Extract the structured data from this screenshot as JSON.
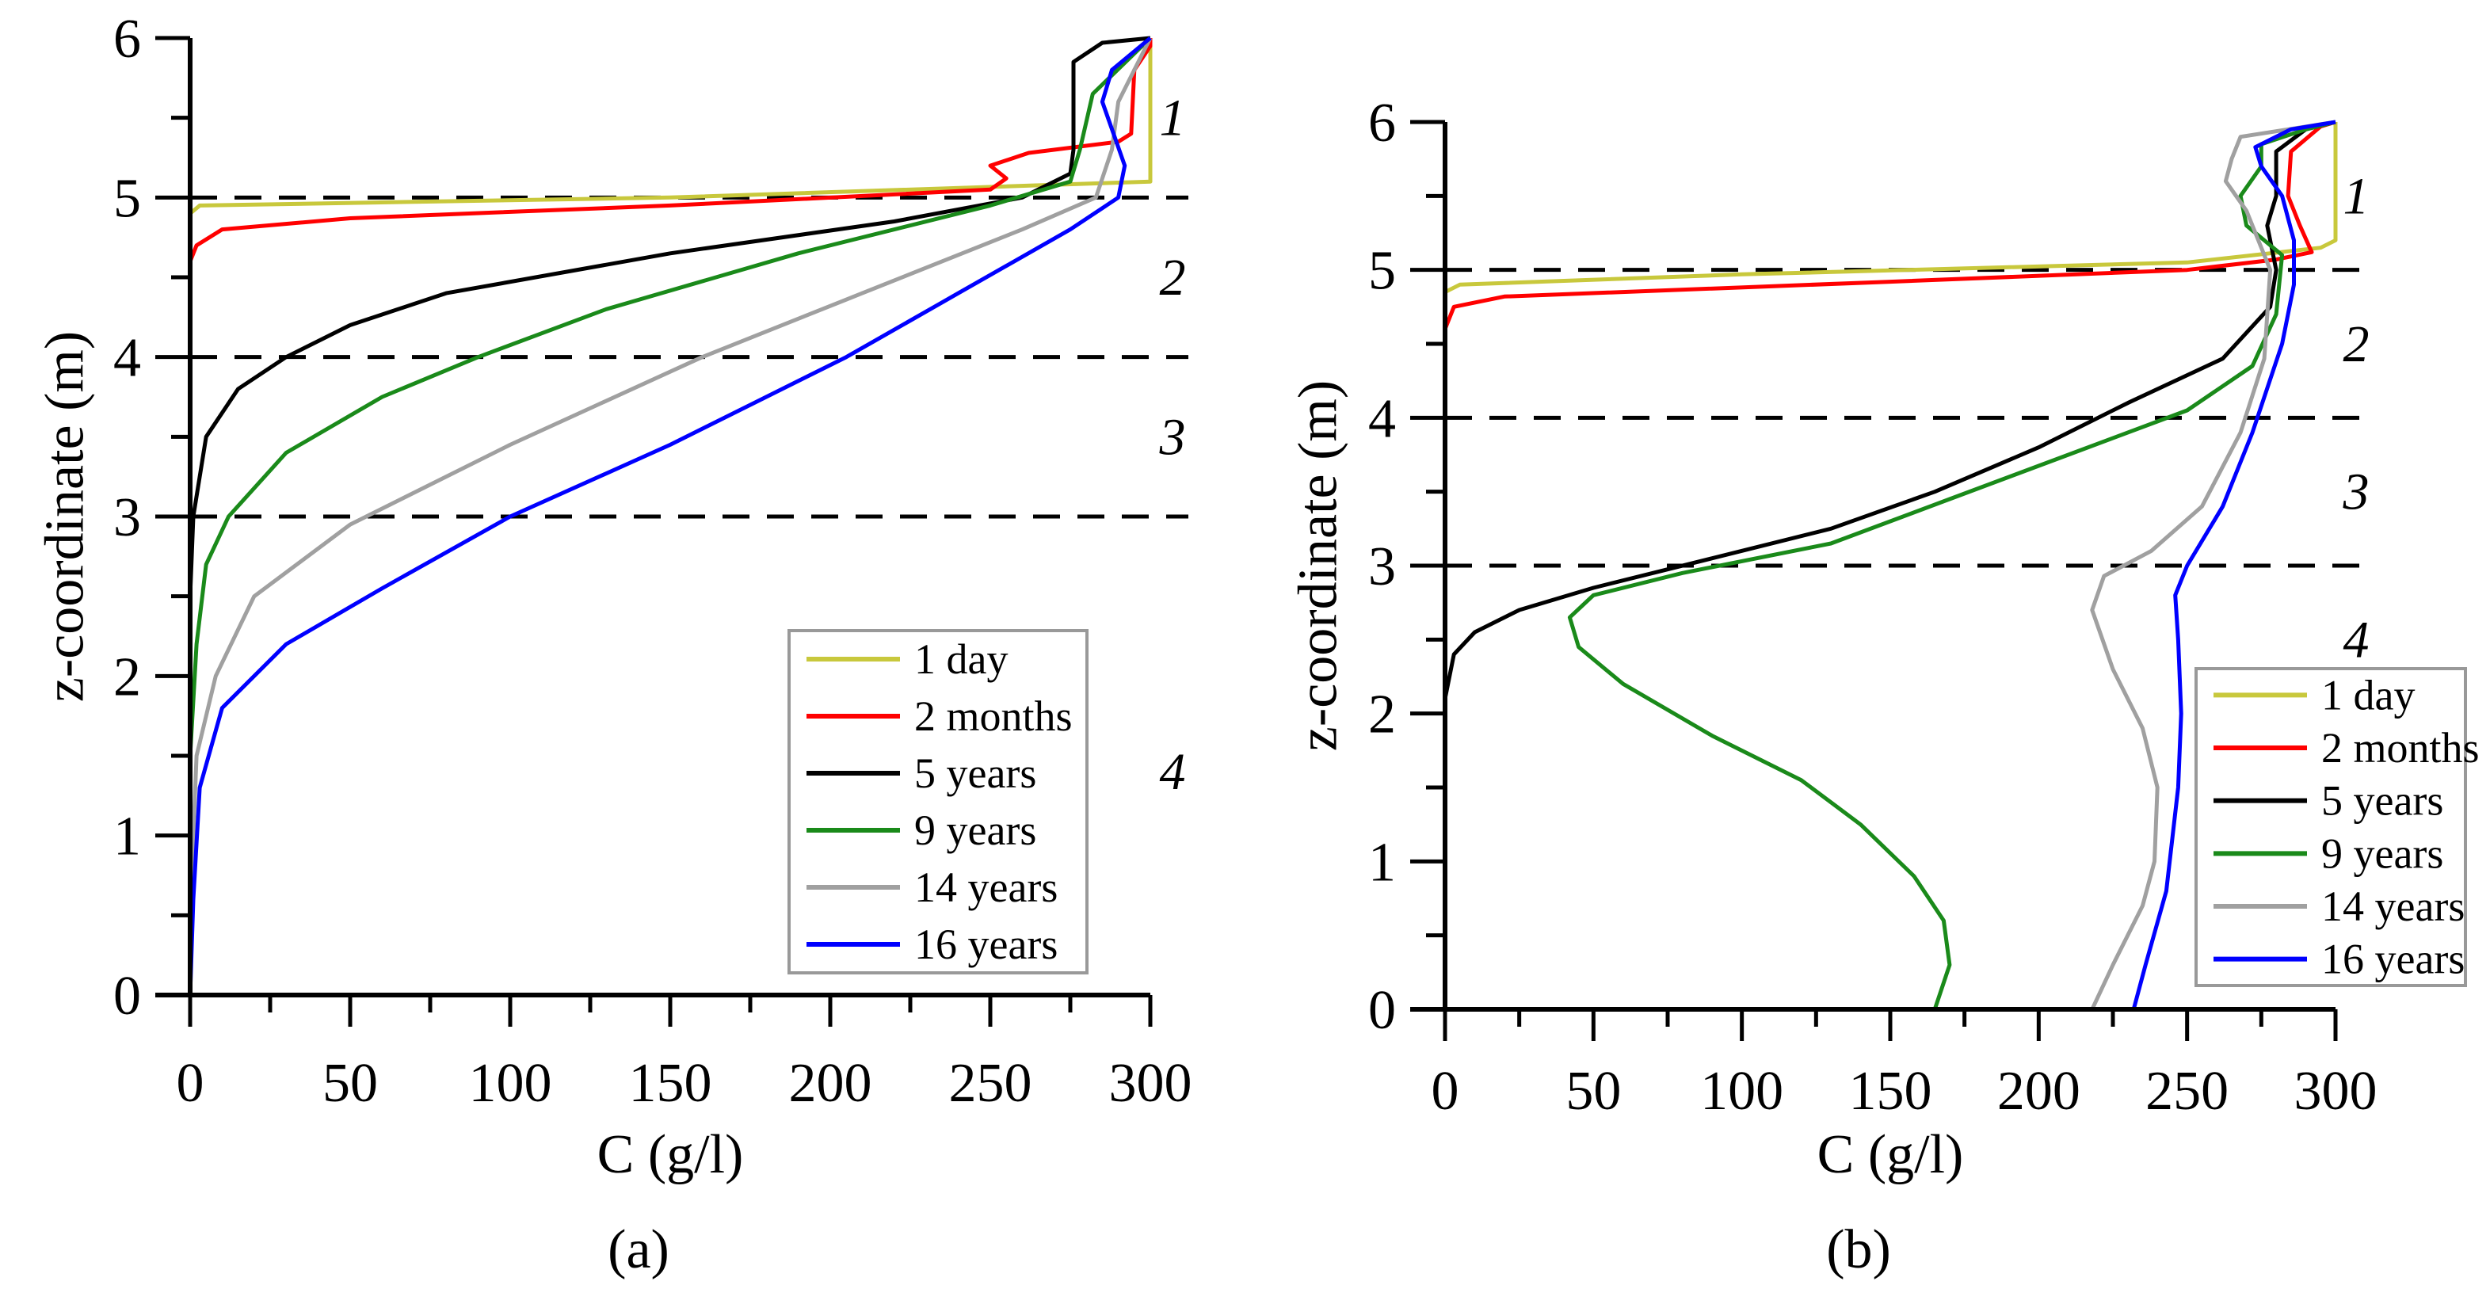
{
  "chart_data": [
    {
      "type": "line",
      "panel_label": "(a)",
      "panel_letter": "a",
      "xlabel": "C (g/l)",
      "ylabel": "z-coordinate (m)",
      "xlim": [
        0,
        300
      ],
      "ylim": [
        0,
        6
      ],
      "xticks": [
        0,
        50,
        100,
        150,
        200,
        250,
        300
      ],
      "yticks": [
        0,
        1,
        2,
        3,
        4,
        5,
        6
      ],
      "reference_lines_z": [
        3,
        4,
        5
      ],
      "zone_labels": [
        {
          "text": "1",
          "z": 5.5
        },
        {
          "text": "2",
          "z": 4.5
        },
        {
          "text": "3",
          "z": 3.5
        },
        {
          "text": "4",
          "z": 1.4
        }
      ],
      "legend_position": "bottom-right",
      "series": [
        {
          "name": "1 day",
          "color": "#c8c83c",
          "points": [
            [
              0,
              0
            ],
            [
              0,
              4.9
            ],
            [
              3,
              4.95
            ],
            [
              150,
              5.0
            ],
            [
              300,
              5.1
            ],
            [
              300,
              5.9
            ],
            [
              300,
              6
            ]
          ]
        },
        {
          "name": "2 months",
          "color": "#ff0000",
          "points": [
            [
              0,
              0
            ],
            [
              0,
              4.6
            ],
            [
              2,
              4.7
            ],
            [
              10,
              4.8
            ],
            [
              50,
              4.87
            ],
            [
              150,
              4.95
            ],
            [
              250,
              5.05
            ],
            [
              255,
              5.12
            ],
            [
              250,
              5.2
            ],
            [
              262,
              5.28
            ],
            [
              290,
              5.35
            ],
            [
              294,
              5.4
            ],
            [
              295,
              5.8
            ],
            [
              300,
              5.95
            ],
            [
              300,
              6
            ]
          ]
        },
        {
          "name": "5 years",
          "color": "#000000",
          "points": [
            [
              0,
              0
            ],
            [
              0,
              2.5
            ],
            [
              1,
              3
            ],
            [
              5,
              3.5
            ],
            [
              15,
              3.8
            ],
            [
              30,
              4
            ],
            [
              50,
              4.2
            ],
            [
              80,
              4.4
            ],
            [
              150,
              4.65
            ],
            [
              220,
              4.85
            ],
            [
              260,
              5
            ],
            [
              275,
              5.15
            ],
            [
              276,
              5.3
            ],
            [
              276,
              5.85
            ],
            [
              285,
              5.97
            ],
            [
              300,
              6
            ]
          ]
        },
        {
          "name": "9 years",
          "color": "#1a8a1a",
          "points": [
            [
              0,
              0
            ],
            [
              0,
              1.5
            ],
            [
              2,
              2.2
            ],
            [
              5,
              2.7
            ],
            [
              12,
              3
            ],
            [
              30,
              3.4
            ],
            [
              60,
              3.75
            ],
            [
              90,
              4
            ],
            [
              130,
              4.3
            ],
            [
              190,
              4.65
            ],
            [
              250,
              4.95
            ],
            [
              275,
              5.1
            ],
            [
              278,
              5.3
            ],
            [
              282,
              5.65
            ],
            [
              300,
              6
            ]
          ]
        },
        {
          "name": "14 years",
          "color": "#a0a0a0",
          "points": [
            [
              0,
              0
            ],
            [
              1,
              1
            ],
            [
              2,
              1.5
            ],
            [
              8,
              2
            ],
            [
              20,
              2.5
            ],
            [
              50,
              2.95
            ],
            [
              100,
              3.45
            ],
            [
              160,
              4
            ],
            [
              210,
              4.4
            ],
            [
              260,
              4.8
            ],
            [
              283,
              5
            ],
            [
              288,
              5.3
            ],
            [
              290,
              5.6
            ],
            [
              300,
              6
            ]
          ]
        },
        {
          "name": "16 years",
          "color": "#0000ff",
          "points": [
            [
              0,
              0
            ],
            [
              1,
              0.6
            ],
            [
              3,
              1.3
            ],
            [
              10,
              1.8
            ],
            [
              30,
              2.2
            ],
            [
              60,
              2.55
            ],
            [
              100,
              3
            ],
            [
              150,
              3.45
            ],
            [
              205,
              4
            ],
            [
              240,
              4.4
            ],
            [
              275,
              4.8
            ],
            [
              290,
              5
            ],
            [
              292,
              5.2
            ],
            [
              285,
              5.6
            ],
            [
              288,
              5.8
            ],
            [
              300,
              6
            ]
          ]
        }
      ]
    },
    {
      "type": "line",
      "panel_label": "(b)",
      "panel_letter": "b",
      "xlabel": "C (g/l)",
      "ylabel": "z-coordinate (m)",
      "xlim": [
        0,
        300
      ],
      "ylim": [
        0,
        6
      ],
      "xticks": [
        0,
        50,
        100,
        150,
        200,
        250,
        300
      ],
      "yticks": [
        0,
        1,
        2,
        3,
        4,
        5,
        6
      ],
      "reference_lines_z": [
        3,
        4,
        5
      ],
      "zone_labels": [
        {
          "text": "1",
          "z": 5.5
        },
        {
          "text": "2",
          "z": 4.5
        },
        {
          "text": "3",
          "z": 3.5
        },
        {
          "text": "4",
          "z": 2.5
        }
      ],
      "legend_position": "bottom-right",
      "series": [
        {
          "name": "1 day",
          "color": "#c8c83c",
          "points": [
            [
              0,
              0
            ],
            [
              0,
              4.85
            ],
            [
              5,
              4.9
            ],
            [
              100,
              4.97
            ],
            [
              250,
              5.05
            ],
            [
              295,
              5.15
            ],
            [
              300,
              5.2
            ],
            [
              300,
              6
            ]
          ]
        },
        {
          "name": "2 months",
          "color": "#ff0000",
          "points": [
            [
              0,
              0
            ],
            [
              0,
              4.6
            ],
            [
              3,
              4.75
            ],
            [
              20,
              4.82
            ],
            [
              150,
              4.92
            ],
            [
              250,
              5
            ],
            [
              280,
              5.07
            ],
            [
              292,
              5.12
            ],
            [
              288,
              5.3
            ],
            [
              284,
              5.5
            ],
            [
              285,
              5.8
            ],
            [
              295,
              5.97
            ],
            [
              300,
              6
            ]
          ]
        },
        {
          "name": "5 years",
          "color": "#000000",
          "points": [
            [
              0,
              0
            ],
            [
              0,
              2.1
            ],
            [
              3,
              2.4
            ],
            [
              10,
              2.55
            ],
            [
              25,
              2.7
            ],
            [
              50,
              2.85
            ],
            [
              90,
              3.05
            ],
            [
              130,
              3.25
            ],
            [
              165,
              3.5
            ],
            [
              200,
              3.8
            ],
            [
              230,
              4.1
            ],
            [
              262,
              4.4
            ],
            [
              278,
              4.75
            ],
            [
              280,
              5
            ],
            [
              277,
              5.3
            ],
            [
              280,
              5.5
            ],
            [
              280,
              5.8
            ],
            [
              290,
              5.95
            ],
            [
              300,
              6
            ]
          ]
        },
        {
          "name": "9 years",
          "color": "#1a8a1a",
          "points": [
            [
              165,
              0
            ],
            [
              170,
              0.3
            ],
            [
              168,
              0.6
            ],
            [
              158,
              0.9
            ],
            [
              140,
              1.25
            ],
            [
              120,
              1.55
            ],
            [
              90,
              1.85
            ],
            [
              60,
              2.2
            ],
            [
              45,
              2.45
            ],
            [
              42,
              2.65
            ],
            [
              50,
              2.8
            ],
            [
              80,
              2.95
            ],
            [
              130,
              3.15
            ],
            [
              170,
              3.45
            ],
            [
              210,
              3.75
            ],
            [
              250,
              4.05
            ],
            [
              272,
              4.35
            ],
            [
              280,
              4.7
            ],
            [
              282,
              5.1
            ],
            [
              270,
              5.3
            ],
            [
              268,
              5.5
            ],
            [
              275,
              5.7
            ],
            [
              275,
              5.85
            ],
            [
              290,
              5.95
            ],
            [
              300,
              6
            ]
          ]
        },
        {
          "name": "14 years",
          "color": "#a0a0a0",
          "points": [
            [
              218,
              0
            ],
            [
              225,
              0.3
            ],
            [
              235,
              0.7
            ],
            [
              239,
              1
            ],
            [
              240,
              1.5
            ],
            [
              235,
              1.9
            ],
            [
              225,
              2.3
            ],
            [
              218,
              2.7
            ],
            [
              222,
              2.93
            ],
            [
              238,
              3.1
            ],
            [
              255,
              3.4
            ],
            [
              268,
              3.9
            ],
            [
              276,
              4.4
            ],
            [
              278,
              5
            ],
            [
              270,
              5.4
            ],
            [
              263,
              5.6
            ],
            [
              265,
              5.75
            ],
            [
              268,
              5.9
            ],
            [
              300,
              6
            ]
          ]
        },
        {
          "name": "16 years",
          "color": "#0000ff",
          "points": [
            [
              232,
              0
            ],
            [
              236,
              0.3
            ],
            [
              243,
              0.8
            ],
            [
              247,
              1.5
            ],
            [
              248,
              2
            ],
            [
              247,
              2.5
            ],
            [
              246,
              2.8
            ],
            [
              250,
              3
            ],
            [
              262,
              3.4
            ],
            [
              272,
              3.9
            ],
            [
              282,
              4.5
            ],
            [
              286,
              4.9
            ],
            [
              286,
              5.2
            ],
            [
              282,
              5.5
            ],
            [
              275,
              5.7
            ],
            [
              273,
              5.83
            ],
            [
              285,
              5.95
            ],
            [
              300,
              6
            ]
          ]
        }
      ]
    }
  ]
}
